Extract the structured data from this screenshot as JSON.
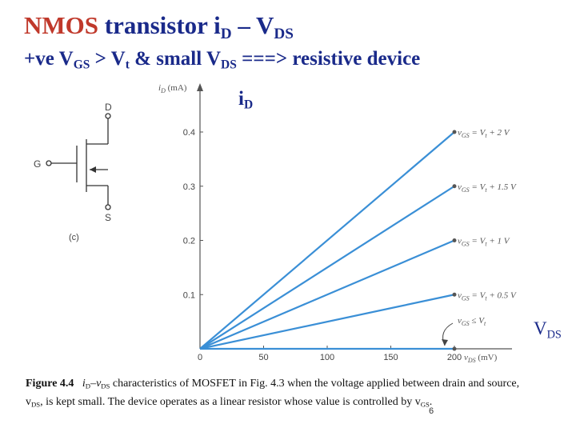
{
  "title": {
    "nmos": "NMOS",
    "rest": " transistor  i",
    "sub_d": "D",
    "dash": " – V",
    "sub_ds": "DS"
  },
  "subtitle": {
    "p1": "+ve V",
    "sub_gs": "GS",
    "p2": " > V",
    "sub_t": "t",
    "p3": " & small V",
    "sub_ds": "DS",
    "p4": " ===> resistive device"
  },
  "axis_label_id": {
    "main": "i",
    "sub": "D"
  },
  "axis_label_vds": {
    "main": "V",
    "sub": "DS"
  },
  "circuit": {
    "drain": "D",
    "gate": "G",
    "source": "S",
    "panel": "(c)"
  },
  "caption": {
    "fig": "Figure 4.4",
    "text1": "i",
    "sub1": "D",
    "text2": "–v",
    "sub2": "DS",
    "text3": " characteristics of  MOSFET in Fig. 4.3 when the voltage applied between drain and source, v",
    "sub3": "DS",
    "text4": ", is kept small. The device operates as a linear resistor whose value is controlled by v",
    "sub4": "GS",
    "text5": "."
  },
  "page_number": "6",
  "colors": {
    "title_accent": "#c0392b",
    "title_main": "#1a2a8a",
    "lines": "#3a8fd6"
  },
  "chart_data": {
    "type": "line",
    "xlabel": "vDS (mV)",
    "ylabel": "iD (mA)",
    "x_ticks": [
      "0",
      "50",
      "100",
      "150",
      "200"
    ],
    "y_ticks": [
      "0.1",
      "0.2",
      "0.3",
      "0.4"
    ],
    "xlim": [
      0,
      220
    ],
    "ylim": [
      0,
      0.45
    ],
    "series": [
      {
        "name": "vGS = Vt + 2 V",
        "x": [
          0,
          200
        ],
        "y": [
          0,
          0.4
        ]
      },
      {
        "name": "vGS = Vt + 1.5 V",
        "x": [
          0,
          200
        ],
        "y": [
          0,
          0.3
        ]
      },
      {
        "name": "vGS = Vt + 1 V",
        "x": [
          0,
          200
        ],
        "y": [
          0,
          0.2
        ]
      },
      {
        "name": "vGS = Vt + 0.5 V",
        "x": [
          0,
          200
        ],
        "y": [
          0,
          0.1
        ]
      },
      {
        "name": "vGS ≤ Vt",
        "x": [
          0,
          200
        ],
        "y": [
          0,
          0
        ]
      }
    ],
    "series_labels": [
      {
        "lhs": "v",
        "sub": "GS",
        "rel": " = V",
        "t": "t",
        "tail": " + 2 V"
      },
      {
        "lhs": "v",
        "sub": "GS",
        "rel": " = V",
        "t": "t",
        "tail": " + 1.5 V"
      },
      {
        "lhs": "v",
        "sub": "GS",
        "rel": " = V",
        "t": "t",
        "tail": " + 1 V"
      },
      {
        "lhs": "v",
        "sub": "GS",
        "rel": " = V",
        "t": "t",
        "tail": " + 0.5 V"
      },
      {
        "lhs": "v",
        "sub": "GS",
        "rel": " ≤ V",
        "t": "t",
        "tail": ""
      }
    ],
    "axis_title_y": {
      "main": "i",
      "sub": "D",
      "unit": " (mA)"
    },
    "axis_title_x": {
      "main": "v",
      "sub": "DS",
      "unit": " (mV)"
    }
  }
}
